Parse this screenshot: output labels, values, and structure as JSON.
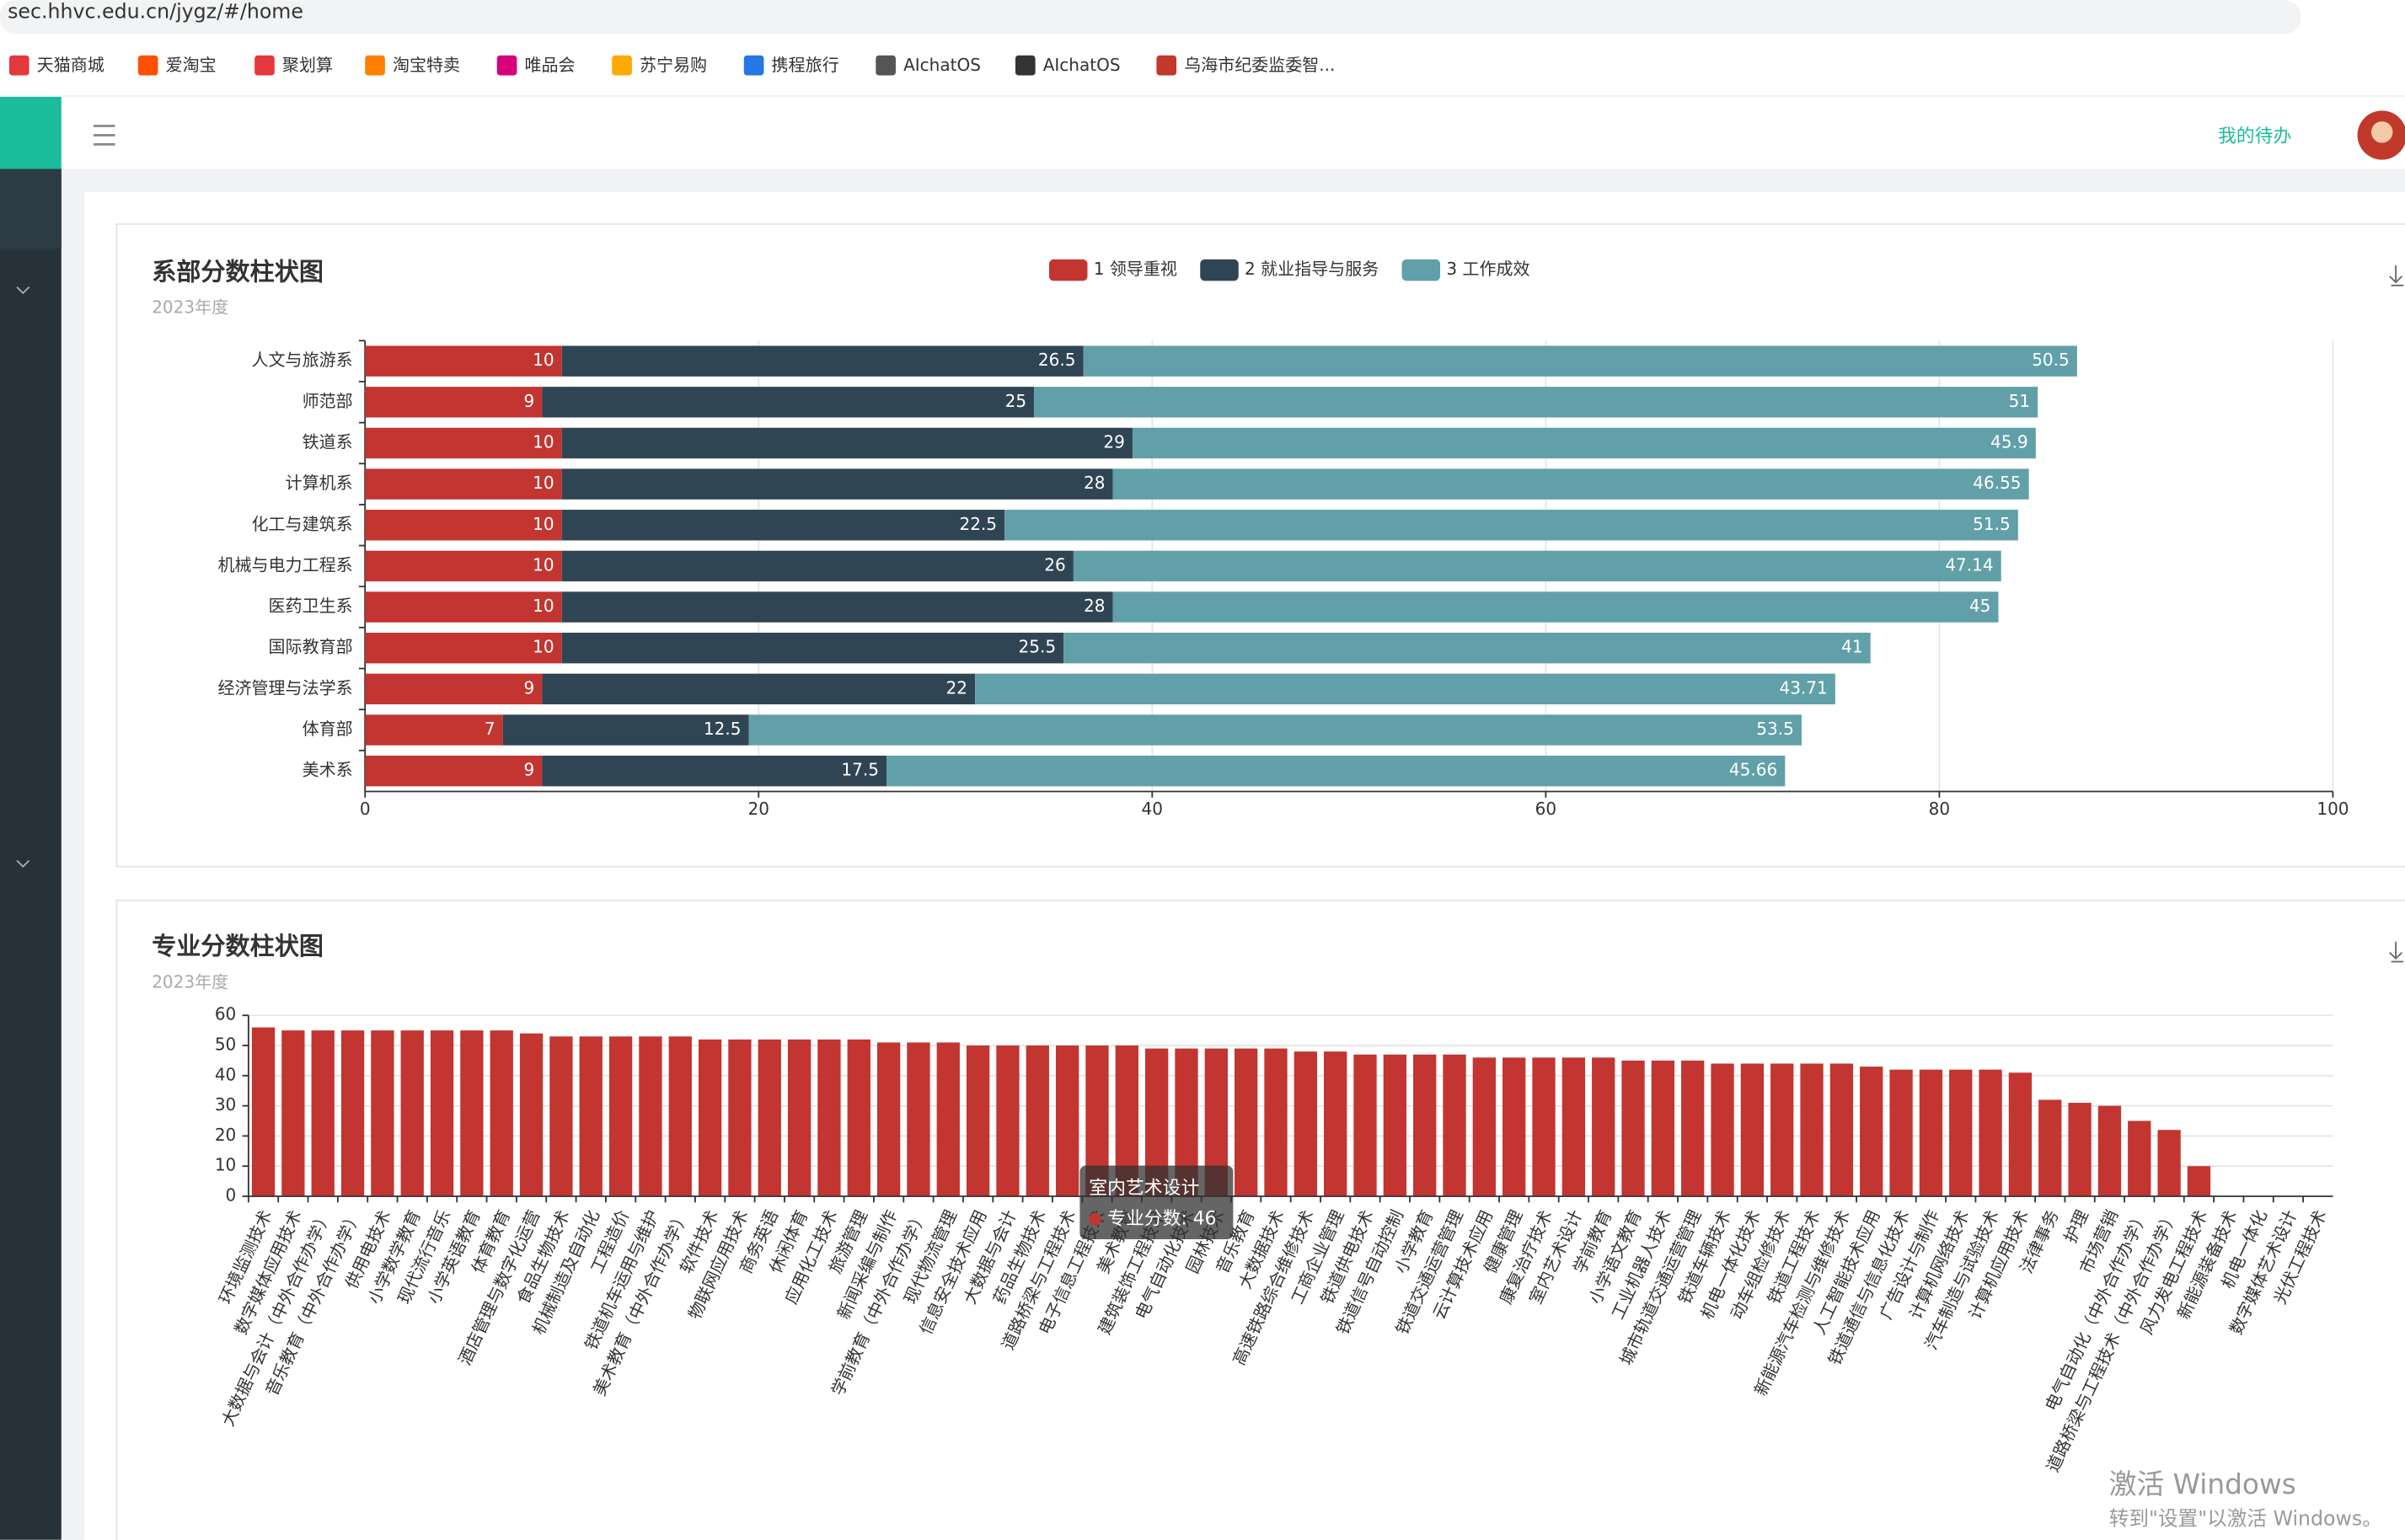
{
  "browser": {
    "url": "sec.hhvc.edu.cn/jygz/#/home",
    "bookmarks": [
      "天猫商城",
      "爱淘宝",
      "聚划算",
      "淘宝特卖",
      "唯品会",
      "苏宁易购",
      "携程旅行",
      "AIchatOS",
      "AIchatOS",
      "乌海市纪委监委智..."
    ]
  },
  "header": {
    "todo": "我的待办"
  },
  "chart_data": [
    {
      "type": "stacked-hbar",
      "title": "系部分数柱状图",
      "subtitle": "2023年度",
      "categories": [
        "人文与旅游系",
        "师范部",
        "铁道系",
        "计算机系",
        "化工与建筑系",
        "机械与电力工程系",
        "医药卫生系",
        "国际教育部",
        "经济管理与法学系",
        "体育部",
        "美术系"
      ],
      "series": [
        {
          "name": "1 领导重视",
          "color": "#c23531",
          "values": [
            10,
            9,
            10,
            10,
            10,
            10,
            10,
            10,
            9,
            7,
            9
          ]
        },
        {
          "name": "2 就业指导与服务",
          "color": "#2f4554",
          "values": [
            26.5,
            25,
            29,
            28,
            22.5,
            26,
            28,
            25.5,
            22,
            12.5,
            17.5
          ]
        },
        {
          "name": "3 工作成效",
          "color": "#61a0a8",
          "values": [
            50.5,
            51,
            45.9,
            46.55,
            51.5,
            47.14,
            45,
            41,
            43.71,
            53.5,
            45.66
          ]
        }
      ],
      "xlim": [
        0,
        100
      ],
      "xticks": [
        0,
        20,
        40,
        60,
        80,
        100
      ],
      "grid": true
    },
    {
      "type": "bar",
      "title": "专业分数柱状图",
      "subtitle": "2023年度",
      "series_name": "专业分数",
      "color": "#c23531",
      "categories": [
        "环境监测技术",
        "数字媒体应用技术",
        "大数据与会计（中外合作办学）",
        "音乐教育（中外合作办学）",
        "供用电技术",
        "小学数学教育",
        "现代流行音乐",
        "小学英语教育",
        "体育教育",
        "酒店管理与数字化运营",
        "食品生物技术",
        "机械制造及自动化",
        "工程造价",
        "铁道机车运用与维护",
        "美术教育（中外合作办学）",
        "软件技术",
        "物联网应用技术",
        "商务英语",
        "休闲体育",
        "应用化工技术",
        "旅游管理",
        "新闻采编与制作",
        "学前教育（中外合作办学）",
        "现代物流管理",
        "信息安全技术应用",
        "大数据与会计",
        "药品生物技术",
        "道路桥梁与工程技术",
        "电子信息工程技术",
        "美术教育",
        "建筑装饰工程技术",
        "电气自动化技术",
        "园林技术",
        "音乐教育",
        "大数据技术",
        "高速铁路综合维修技术",
        "工商企业管理",
        "铁道供电技术",
        "铁道信号自动控制",
        "小学教育",
        "铁道交通运营管理",
        "云计算技术应用",
        "健康管理",
        "康复治疗技术",
        "室内艺术设计",
        "学前教育",
        "小学语文教育",
        "工业机器人技术",
        "城市轨道交通运营管理",
        "铁道车辆技术",
        "机电一体化技术",
        "动车组检修技术",
        "铁道工程技术",
        "新能源汽车检测与维修技术",
        "人工智能技术应用",
        "铁道通信与信息化技术",
        "广告设计与制作",
        "计算机网络技术",
        "汽车制造与试验技术",
        "计算机应用技术",
        "法律事务",
        "护理",
        "市场营销",
        "电气自动化（中外合作办学）",
        "道路桥梁与工程技术（中外合作办学）",
        "风力发电工程技术",
        "新能源装备技术",
        "机电一体化",
        "数字媒体艺术设计",
        "光伏工程技术"
      ],
      "values": [
        56,
        55,
        55,
        55,
        55,
        55,
        55,
        55,
        55,
        54,
        53,
        53,
        53,
        53,
        53,
        52,
        52,
        52,
        52,
        52,
        52,
        51,
        51,
        51,
        50,
        50,
        50,
        50,
        50,
        50,
        49,
        49,
        49,
        49,
        49,
        48,
        48,
        47,
        47,
        47,
        47,
        46,
        46,
        46,
        46,
        46,
        45,
        45,
        45,
        44,
        44,
        44,
        44,
        44,
        43,
        42,
        42,
        42,
        42,
        41,
        32,
        31,
        30,
        25,
        22,
        10,
        0,
        0,
        0,
        0
      ],
      "ylim": [
        0,
        60
      ],
      "yticks": [
        0,
        10,
        20,
        30,
        40,
        50,
        60
      ],
      "grid": true,
      "tooltip": {
        "title": "室内艺术设计",
        "label": "专业分数: 46"
      }
    }
  ],
  "watermark": {
    "line1": "激活 Windows",
    "line2": "转到\"设置\"以激活 Windows。"
  }
}
